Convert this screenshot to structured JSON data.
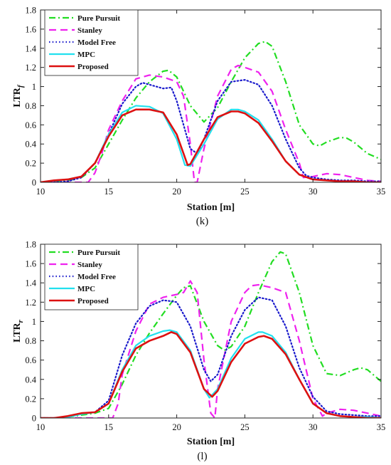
{
  "chart_data": [
    {
      "type": "line",
      "caption": "(k)",
      "xlabel": "Station [m]",
      "ylabel": "LTR",
      "ylabel_sub": "f",
      "xlim": [
        10,
        35
      ],
      "ylim": [
        0,
        1.8
      ],
      "xticks": [
        10,
        15,
        20,
        25,
        30,
        35
      ],
      "yticks": [
        0,
        0.2,
        0.4,
        0.6,
        0.8,
        1,
        1.2,
        1.4,
        1.6,
        1.8
      ],
      "ytick_labels": [
        "0",
        "0.2",
        "0.4",
        "0.6",
        "0.8",
        "1",
        "1.2",
        "1.4",
        "1.6",
        "1.8"
      ],
      "grid": false,
      "legend_position": "top-left",
      "series": [
        {
          "name": "Pure Pursuit",
          "color": "#22dd22",
          "dash": "dashdot",
          "x": [
            10,
            11,
            12,
            13,
            14,
            15,
            16,
            17,
            18,
            19,
            19.4,
            20,
            21,
            22,
            23,
            24,
            25,
            26,
            26.5,
            27,
            28,
            29,
            30,
            30.5,
            31,
            32,
            32.5,
            33,
            34,
            35
          ],
          "y": [
            0,
            0.01,
            0.02,
            0.05,
            0.15,
            0.4,
            0.65,
            0.88,
            1.05,
            1.16,
            1.17,
            1.1,
            0.8,
            0.63,
            0.78,
            1.05,
            1.3,
            1.45,
            1.47,
            1.42,
            1.05,
            0.6,
            0.4,
            0.38,
            0.42,
            0.47,
            0.46,
            0.42,
            0.3,
            0.24
          ]
        },
        {
          "name": "Stanley",
          "color": "#ee22ee",
          "dash": "dash",
          "x": [
            10,
            11,
            12,
            13,
            13.5,
            14,
            14.5,
            15,
            16,
            17,
            18,
            19,
            20,
            20.5,
            21,
            21.3,
            21.5,
            22,
            23,
            24,
            24.5,
            25,
            26,
            27,
            28,
            29,
            29.3,
            30,
            31,
            32,
            33,
            34,
            35
          ],
          "y": [
            0,
            0,
            0,
            0,
            0,
            0.1,
            0.3,
            0.55,
            0.85,
            1.08,
            1.12,
            1.1,
            1.05,
            0.9,
            0.4,
            0,
            0,
            0.35,
            0.9,
            1.18,
            1.22,
            1.2,
            1.15,
            0.95,
            0.55,
            0.2,
            0.05,
            0.06,
            0.09,
            0.08,
            0.05,
            0.02,
            0.01
          ]
        },
        {
          "name": "Model Free",
          "color": "#1a1acc",
          "dash": "dot",
          "x": [
            10,
            11,
            12,
            13,
            14,
            15,
            16,
            17,
            17.5,
            18,
            19,
            19.6,
            20,
            21,
            21.5,
            22,
            23,
            24,
            25,
            26,
            27,
            28,
            29,
            29.5,
            30,
            31,
            32,
            33,
            34,
            35
          ],
          "y": [
            0,
            0,
            0.01,
            0.05,
            0.2,
            0.5,
            0.82,
            1.0,
            1.04,
            1.02,
            0.98,
            0.99,
            0.85,
            0.35,
            0.3,
            0.45,
            0.85,
            1.05,
            1.07,
            1.02,
            0.8,
            0.45,
            0.15,
            0.07,
            0.05,
            0.03,
            0.02,
            0.02,
            0.01,
            0.01
          ]
        },
        {
          "name": "MPC",
          "color": "#22e0ee",
          "dash": "solid",
          "x": [
            10,
            11,
            12,
            13,
            14,
            15,
            16,
            17,
            18,
            19,
            20,
            20.6,
            21,
            22,
            23,
            24,
            24.5,
            25,
            26,
            27,
            28,
            29,
            30,
            31,
            32,
            33,
            34,
            35
          ],
          "y": [
            0,
            0.02,
            0.03,
            0.06,
            0.2,
            0.5,
            0.73,
            0.8,
            0.79,
            0.72,
            0.45,
            0.18,
            0.17,
            0.4,
            0.66,
            0.76,
            0.76,
            0.74,
            0.65,
            0.45,
            0.22,
            0.08,
            0.03,
            0.02,
            0.01,
            0.01,
            0,
            0
          ]
        },
        {
          "name": "Proposed",
          "color": "#dd1111",
          "dash": "solid",
          "x": [
            10,
            11,
            12,
            13,
            14,
            15,
            16,
            17,
            18,
            19,
            20,
            20.8,
            21,
            22,
            23,
            24,
            24.5,
            25,
            26,
            27,
            28,
            29,
            30,
            31,
            32,
            33,
            34,
            35
          ],
          "y": [
            0,
            0.02,
            0.03,
            0.06,
            0.2,
            0.48,
            0.7,
            0.76,
            0.76,
            0.73,
            0.5,
            0.18,
            0.19,
            0.45,
            0.68,
            0.74,
            0.74,
            0.72,
            0.62,
            0.43,
            0.22,
            0.08,
            0.03,
            0.02,
            0.01,
            0.01,
            0,
            0
          ]
        }
      ]
    },
    {
      "type": "line",
      "caption": "(l)",
      "xlabel": "Station [m]",
      "ylabel": "LTR",
      "ylabel_sub": "r",
      "xlim": [
        10,
        35
      ],
      "ylim": [
        0,
        1.8
      ],
      "xticks": [
        10,
        15,
        20,
        25,
        30,
        35
      ],
      "yticks": [
        0,
        0.2,
        0.4,
        0.6,
        0.8,
        1,
        1.2,
        1.4,
        1.6,
        1.8
      ],
      "ytick_labels": [
        "0",
        "0.2",
        "0.4",
        "0.6",
        "0.8",
        "1",
        "1.2",
        "1.4",
        "1.6",
        "1.8"
      ],
      "grid": false,
      "legend_position": "top-left",
      "series": [
        {
          "name": "Pure Pursuit",
          "color": "#22dd22",
          "dash": "dashdot",
          "x": [
            10,
            11,
            12,
            13,
            14,
            15,
            16,
            17,
            18,
            19,
            20,
            20.5,
            21,
            22,
            23,
            23.5,
            24,
            25,
            26,
            27,
            27.6,
            28,
            29,
            30,
            31,
            32,
            33,
            33.5,
            34,
            35
          ],
          "y": [
            0,
            0,
            0.01,
            0.03,
            0.05,
            0.1,
            0.35,
            0.65,
            0.88,
            1.08,
            1.27,
            1.35,
            1.37,
            1.0,
            0.75,
            0.7,
            0.74,
            0.95,
            1.3,
            1.62,
            1.72,
            1.7,
            1.3,
            0.75,
            0.46,
            0.44,
            0.5,
            0.52,
            0.5,
            0.38
          ]
        },
        {
          "name": "Stanley",
          "color": "#ee22ee",
          "dash": "dash",
          "x": [
            10,
            11,
            12,
            13,
            14,
            15,
            15.3,
            15.7,
            16,
            17,
            18,
            19,
            20,
            20.5,
            21,
            21.5,
            22,
            22.5,
            22.8,
            23,
            24,
            25,
            25.5,
            26,
            27,
            28,
            29,
            30,
            30.7,
            31,
            32,
            33,
            34,
            35
          ],
          "y": [
            0,
            0,
            0,
            0,
            0,
            0,
            0,
            0.15,
            0.45,
            0.9,
            1.18,
            1.25,
            1.28,
            1.3,
            1.42,
            1.3,
            0.6,
            0.05,
            0,
            0.3,
            1.0,
            1.3,
            1.37,
            1.38,
            1.35,
            1.3,
            0.8,
            0.2,
            0.02,
            0.05,
            0.09,
            0.08,
            0.05,
            0.02
          ]
        },
        {
          "name": "Model Free",
          "color": "#1a1acc",
          "dash": "dot",
          "x": [
            10,
            11,
            12,
            13,
            14,
            15,
            16,
            17,
            18,
            19,
            19.6,
            20,
            21,
            22,
            22.5,
            23,
            24,
            25,
            26,
            27,
            28,
            29,
            30,
            31,
            32,
            33,
            34,
            35
          ],
          "y": [
            0,
            0,
            0.01,
            0.04,
            0.06,
            0.18,
            0.65,
            0.98,
            1.16,
            1.22,
            1.21,
            1.2,
            0.95,
            0.5,
            0.38,
            0.45,
            0.85,
            1.12,
            1.25,
            1.22,
            0.95,
            0.52,
            0.22,
            0.07,
            0.04,
            0.03,
            0.02,
            0.02
          ]
        },
        {
          "name": "MPC",
          "color": "#22e0ee",
          "dash": "solid",
          "x": [
            10,
            11,
            12,
            13,
            14,
            15,
            16,
            17,
            18,
            19,
            19.5,
            20,
            21,
            22,
            22.4,
            23,
            24,
            25,
            26,
            26.3,
            27,
            28,
            29,
            30,
            31,
            32,
            33,
            34,
            35
          ],
          "y": [
            0,
            0,
            0.01,
            0.04,
            0.06,
            0.15,
            0.5,
            0.75,
            0.85,
            0.9,
            0.91,
            0.89,
            0.7,
            0.3,
            0.21,
            0.3,
            0.62,
            0.82,
            0.89,
            0.89,
            0.85,
            0.68,
            0.4,
            0.15,
            0.05,
            0.02,
            0.01,
            0.01,
            0
          ]
        },
        {
          "name": "Proposed",
          "color": "#dd1111",
          "dash": "solid",
          "x": [
            10,
            11,
            12,
            13,
            14,
            15,
            16,
            17,
            18,
            19,
            19.6,
            20,
            21,
            22,
            22.6,
            23,
            24,
            25,
            26,
            26.4,
            27,
            28,
            29,
            30,
            31,
            32,
            33,
            34,
            35
          ],
          "y": [
            0,
            0,
            0.02,
            0.05,
            0.06,
            0.15,
            0.48,
            0.72,
            0.8,
            0.85,
            0.89,
            0.87,
            0.68,
            0.3,
            0.22,
            0.28,
            0.58,
            0.77,
            0.84,
            0.85,
            0.82,
            0.66,
            0.4,
            0.15,
            0.05,
            0.02,
            0.01,
            0,
            0
          ]
        }
      ]
    }
  ]
}
